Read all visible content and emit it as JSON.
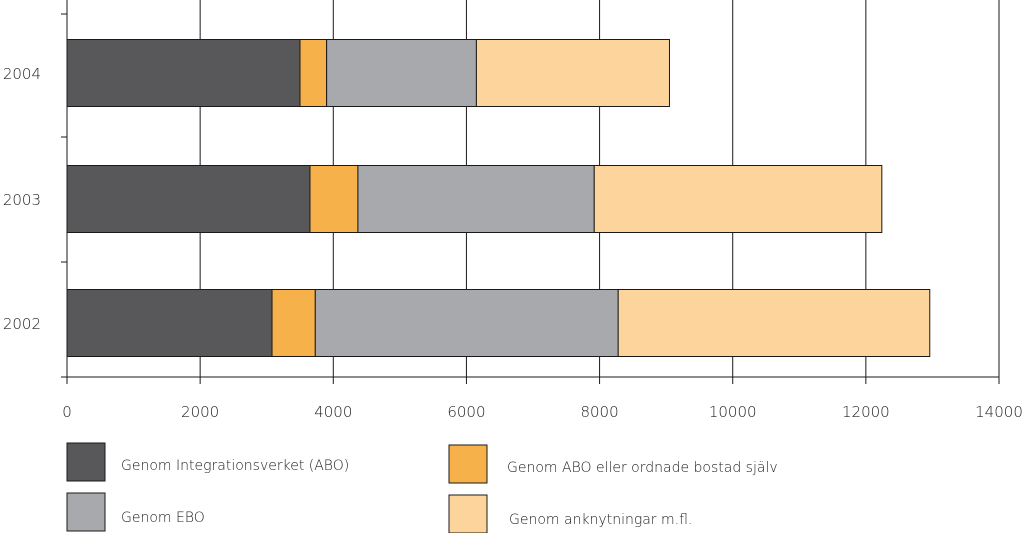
{
  "chart_data": {
    "type": "bar",
    "orientation": "horizontal",
    "stacked": true,
    "categories": [
      "2004",
      "2003",
      "2002"
    ],
    "series": [
      {
        "name": "Genom Integrationsverket (ABO)",
        "values": [
          3500,
          3650,
          3080
        ],
        "color": "#58585a"
      },
      {
        "name": "Genom ABO eller ordnade bostad själv",
        "values": [
          400,
          720,
          650
        ],
        "color": "#f7b14a"
      },
      {
        "name": "Genom EBO",
        "values": [
          2250,
          3550,
          4550
        ],
        "color": "#a7a9ac"
      },
      {
        "name": "Genom anknytningar m.fl.",
        "values": [
          2900,
          4320,
          4680
        ],
        "color": "#fdd59c"
      }
    ],
    "x_ticks": [
      "0",
      "2000",
      "4000",
      "6000",
      "8000",
      "10000",
      "12000",
      "14000"
    ],
    "xlim": [
      0,
      14000
    ],
    "grid": true,
    "legend_position": "bottom"
  }
}
